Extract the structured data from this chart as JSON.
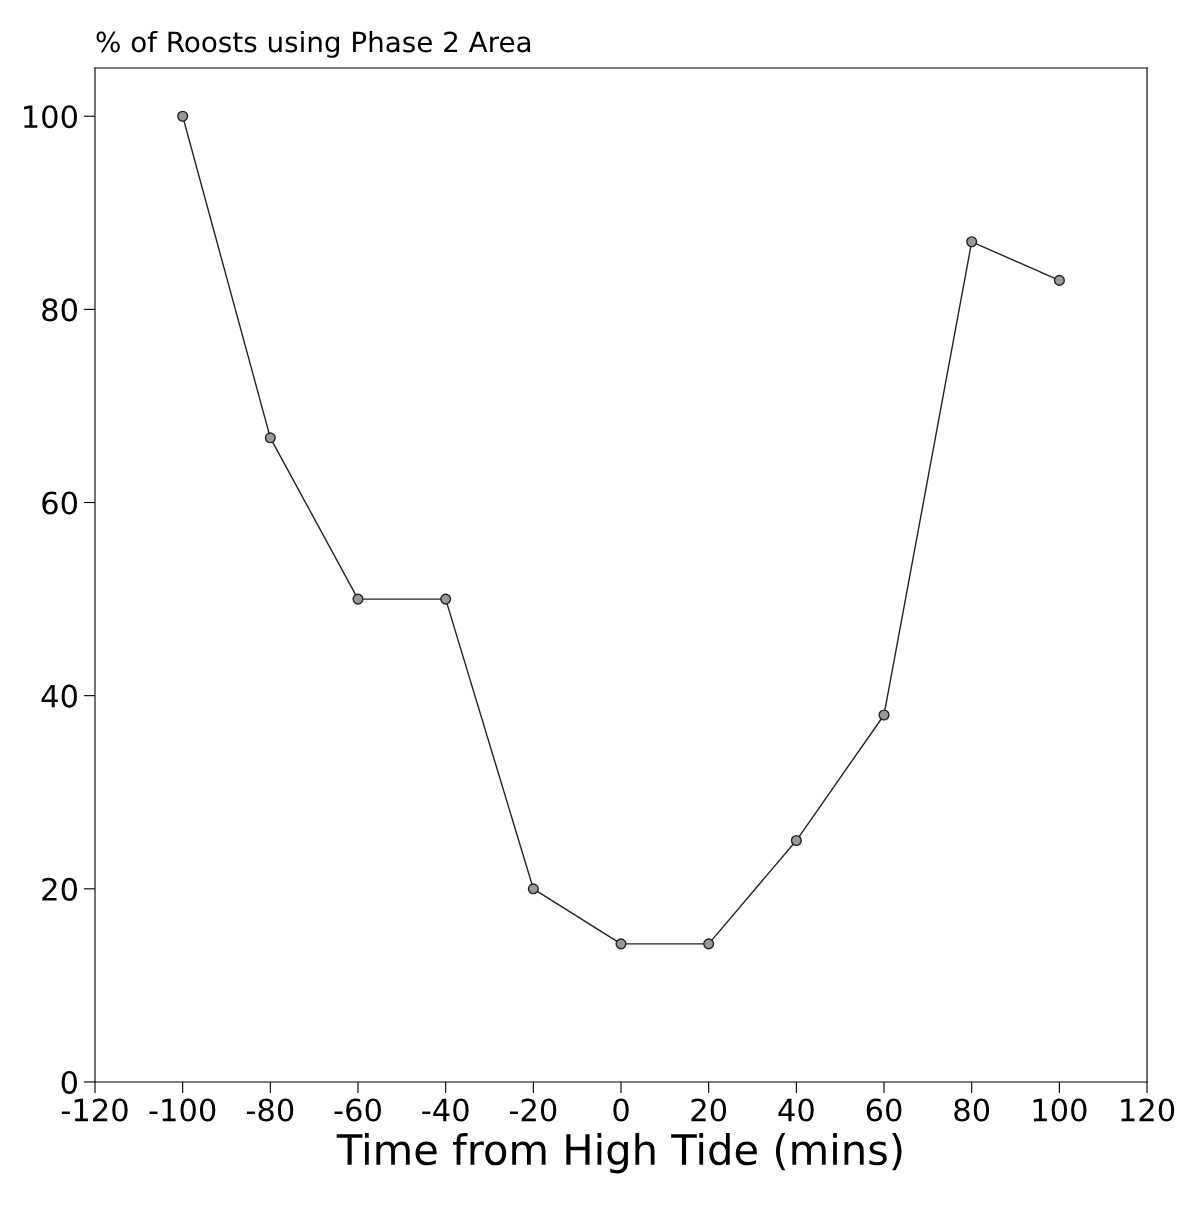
{
  "chart_data": {
    "type": "line",
    "ylabel": "% of Roosts using Phase 2 Area",
    "xlabel": "Time from High Tide (mins)",
    "x": [
      -100,
      -80,
      -60,
      -40,
      -20,
      0,
      20,
      40,
      60,
      80,
      100
    ],
    "series": [
      {
        "color": "#222222",
        "values": [
          100,
          66.7,
          50,
          50,
          20,
          14.3,
          14.3,
          25,
          38,
          87,
          83
        ]
      }
    ],
    "xlim": [
      -120,
      120
    ],
    "xticks": [
      -120,
      -100,
      -80,
      -60,
      -40,
      -20,
      0,
      20,
      40,
      60,
      80,
      100,
      120
    ],
    "ylim": [
      0,
      105
    ],
    "yticks": [
      0,
      20,
      40,
      60,
      80,
      100
    ],
    "marker": "circle",
    "line_style": "solid",
    "grid": false,
    "legend": false
  }
}
